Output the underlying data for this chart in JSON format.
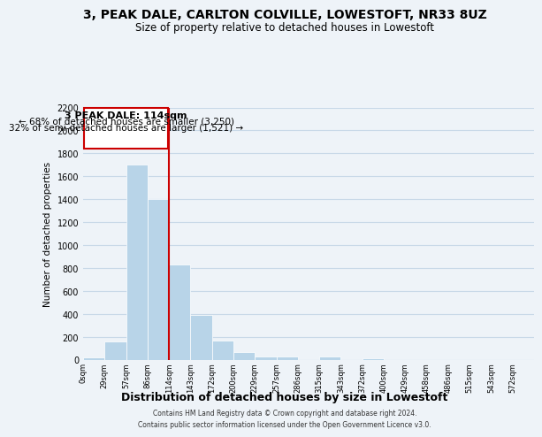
{
  "title": "3, PEAK DALE, CARLTON COLVILLE, LOWESTOFT, NR33 8UZ",
  "subtitle": "Size of property relative to detached houses in Lowestoft",
  "xlabel": "Distribution of detached houses by size in Lowestoft",
  "ylabel": "Number of detached properties",
  "bar_labels": [
    "0sqm",
    "29sqm",
    "57sqm",
    "86sqm",
    "114sqm",
    "143sqm",
    "172sqm",
    "200sqm",
    "229sqm",
    "257sqm",
    "286sqm",
    "315sqm",
    "343sqm",
    "372sqm",
    "400sqm",
    "429sqm",
    "458sqm",
    "486sqm",
    "515sqm",
    "543sqm",
    "572sqm"
  ],
  "bar_values": [
    20,
    160,
    1700,
    1400,
    830,
    390,
    165,
    65,
    30,
    25,
    0,
    25,
    0,
    15,
    0,
    0,
    0,
    0,
    0,
    0,
    0
  ],
  "bar_color": "#b8d4e8",
  "vline_color": "#cc0000",
  "vline_x_index": 4,
  "annotation_title": "3 PEAK DALE: 114sqm",
  "annotation_line1": "← 68% of detached houses are smaller (3,250)",
  "annotation_line2": "32% of semi-detached houses are larger (1,521) →",
  "annotation_box_facecolor": "white",
  "annotation_box_edgecolor": "#cc0000",
  "ylim": [
    0,
    2200
  ],
  "yticks": [
    0,
    200,
    400,
    600,
    800,
    1000,
    1200,
    1400,
    1600,
    1800,
    2000,
    2200
  ],
  "footer_line1": "Contains HM Land Registry data © Crown copyright and database right 2024.",
  "footer_line2": "Contains public sector information licensed under the Open Government Licence v3.0.",
  "grid_color": "#c8d8e8",
  "background_color": "#eef3f8"
}
